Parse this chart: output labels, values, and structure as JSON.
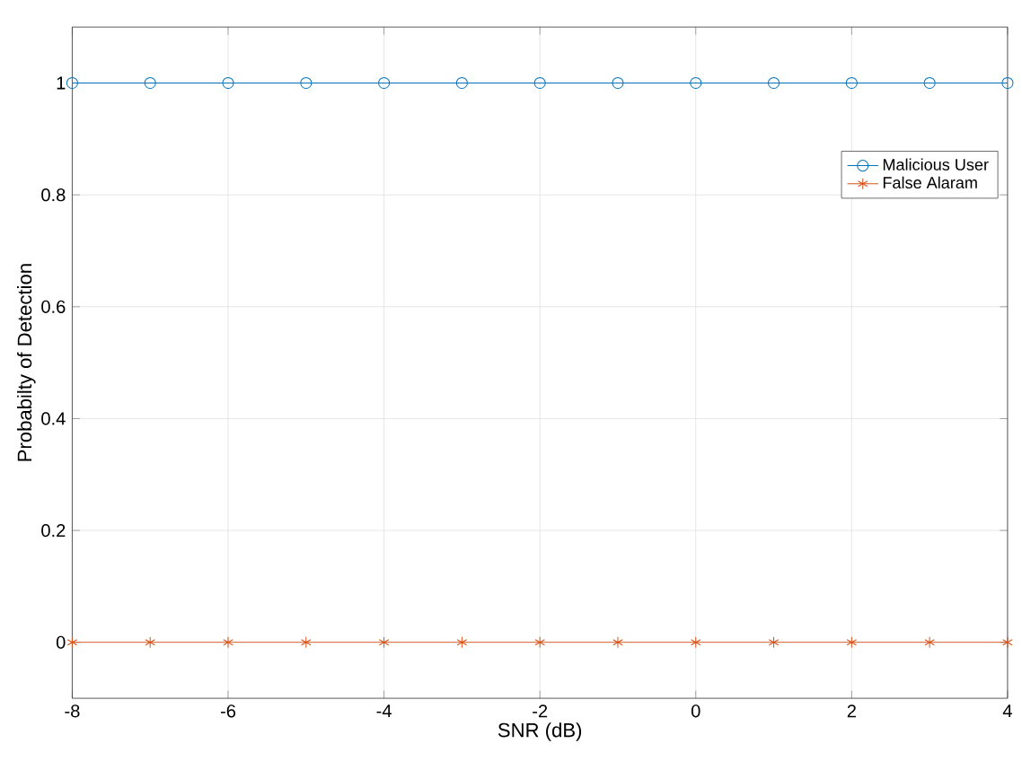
{
  "chart_data": {
    "type": "line",
    "xlabel": "SNR (dB)",
    "ylabel": "Probabilty of Detection",
    "x": [
      -8,
      -7,
      -6,
      -5,
      -4,
      -3,
      -2,
      -1,
      0,
      1,
      2,
      3,
      4
    ],
    "series": [
      {
        "name": "Malicious User",
        "color": "#0072bd",
        "marker": "circle",
        "values": [
          1,
          1,
          1,
          1,
          1,
          1,
          1,
          1,
          1,
          1,
          1,
          1,
          1
        ]
      },
      {
        "name": "False Alaram",
        "color": "#d95319",
        "marker": "cross",
        "values": [
          0,
          0,
          0,
          0,
          0,
          0,
          0,
          0,
          0,
          0,
          0,
          0,
          0
        ]
      }
    ],
    "xlim": [
      -8,
      4
    ],
    "ylim": [
      -0.1,
      1.1
    ],
    "xticks": [
      -8,
      -6,
      -4,
      -2,
      0,
      2,
      4
    ],
    "yticks": [
      0,
      0.2,
      0.4,
      0.6,
      0.8,
      1
    ],
    "grid": true,
    "legend": "right",
    "line_style": "solid"
  }
}
